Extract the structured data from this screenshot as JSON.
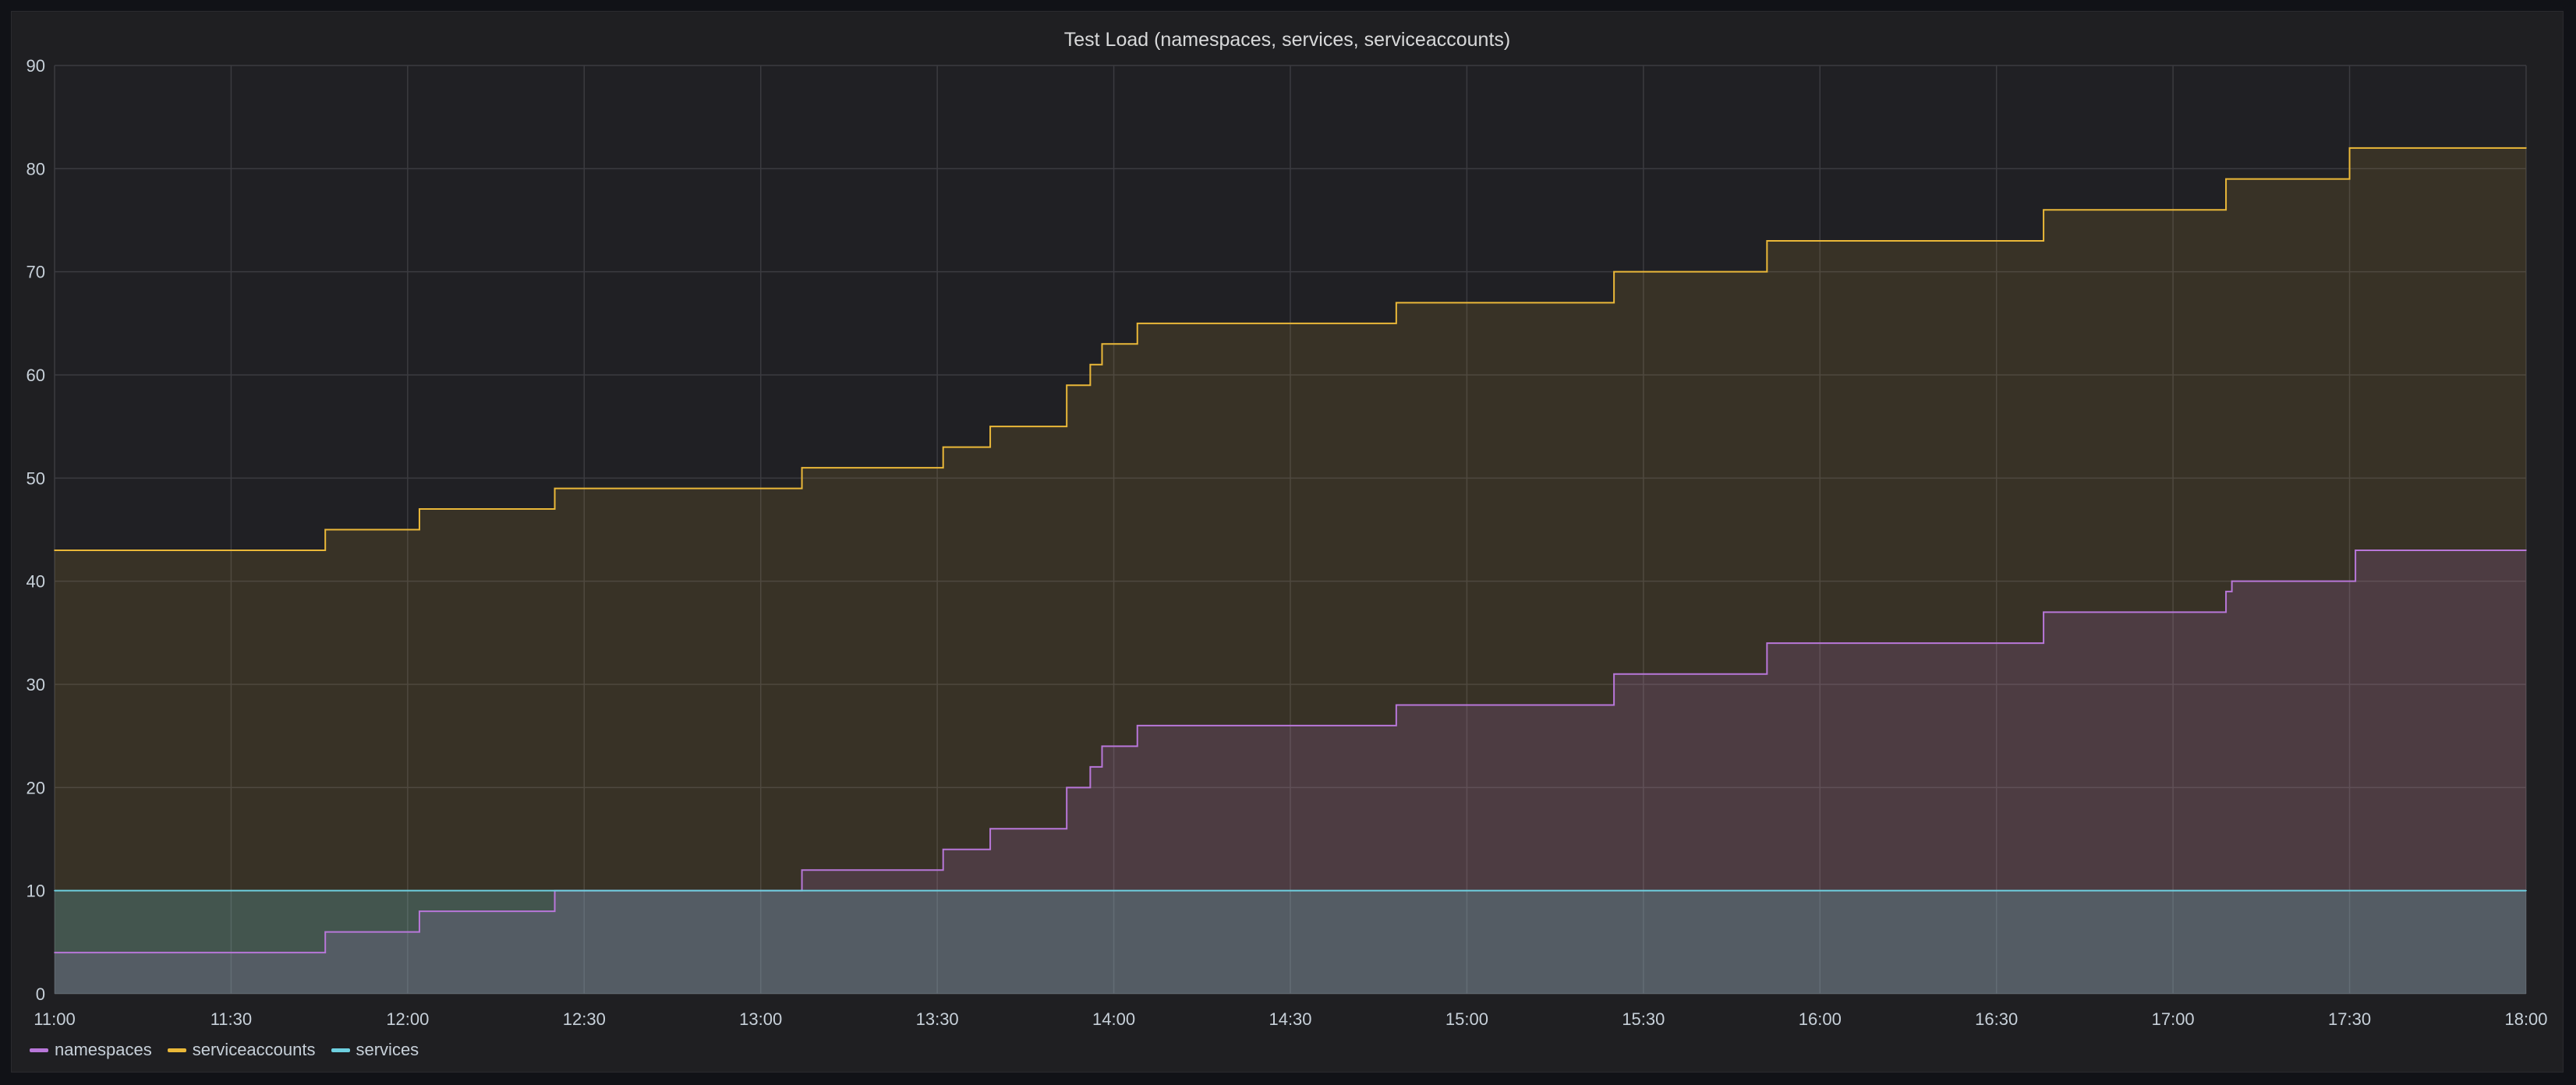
{
  "panel": {
    "title": "Test Load (namespaces, services, serviceaccounts)"
  },
  "chart_data": {
    "type": "area",
    "title": "Test Load (namespaces, services, serviceaccounts)",
    "xlabel": "",
    "ylabel": "",
    "x_ticks": [
      "11:00",
      "11:30",
      "12:00",
      "12:30",
      "13:00",
      "13:30",
      "14:00",
      "14:30",
      "15:00",
      "15:30",
      "16:00",
      "16:30",
      "17:00",
      "17:30",
      "18:00"
    ],
    "x_range": [
      "11:00",
      "18:00"
    ],
    "y_ticks": [
      0,
      10,
      20,
      30,
      40,
      50,
      60,
      70,
      80,
      90
    ],
    "ylim": [
      0,
      90
    ],
    "grid": true,
    "step": true,
    "legend_position": "bottom-left",
    "series": [
      {
        "name": "namespaces",
        "color": "#b877d9",
        "points": [
          [
            "11:00",
            4
          ],
          [
            "11:46",
            6
          ],
          [
            "12:02",
            8
          ],
          [
            "12:25",
            10
          ],
          [
            "13:07",
            12
          ],
          [
            "13:31",
            14
          ],
          [
            "13:39",
            16
          ],
          [
            "13:52",
            20
          ],
          [
            "13:56",
            22
          ],
          [
            "13:58",
            24
          ],
          [
            "14:04",
            26
          ],
          [
            "14:48",
            28
          ],
          [
            "15:25",
            31
          ],
          [
            "15:51",
            34
          ],
          [
            "16:38",
            37
          ],
          [
            "17:09",
            39
          ],
          [
            "17:10",
            40
          ],
          [
            "17:31",
            43
          ],
          [
            "18:00",
            43
          ]
        ]
      },
      {
        "name": "serviceaccounts",
        "color": "#eab839",
        "points": [
          [
            "11:00",
            43
          ],
          [
            "11:46",
            45
          ],
          [
            "12:02",
            47
          ],
          [
            "12:25",
            49
          ],
          [
            "13:07",
            51
          ],
          [
            "13:31",
            53
          ],
          [
            "13:39",
            55
          ],
          [
            "13:52",
            59
          ],
          [
            "13:56",
            61
          ],
          [
            "13:58",
            63
          ],
          [
            "14:04",
            65
          ],
          [
            "14:48",
            67
          ],
          [
            "15:25",
            70
          ],
          [
            "15:51",
            73
          ],
          [
            "16:38",
            76
          ],
          [
            "17:09",
            79
          ],
          [
            "17:30",
            82
          ],
          [
            "18:00",
            82
          ]
        ]
      },
      {
        "name": "services",
        "color": "#6ed0e0",
        "points": [
          [
            "11:00",
            10
          ],
          [
            "18:00",
            10
          ]
        ]
      }
    ]
  }
}
